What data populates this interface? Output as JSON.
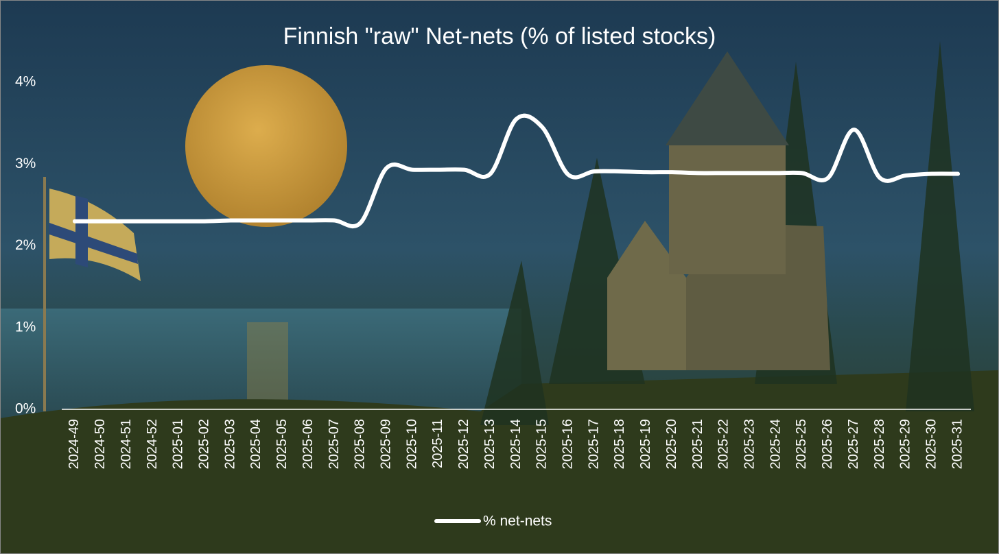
{
  "chart_data": {
    "type": "line",
    "title": "Finnish \"raw\" Net-nets (% of listed stocks)",
    "categories": [
      "2024-49",
      "2024-50",
      "2024-51",
      "2024-52",
      "2025-01",
      "2025-02",
      "2025-03",
      "2025-04",
      "2025-05",
      "2025-06",
      "2025-07",
      "2025-08",
      "2025-09",
      "2025-10",
      "2025-11",
      "2025-12",
      "2025-13",
      "2025-14",
      "2025-15",
      "2025-16",
      "2025-17",
      "2025-18",
      "2025-19",
      "2025-20",
      "2025-21",
      "2025-22",
      "2025-23",
      "2025-24",
      "2025-25",
      "2025-26",
      "2025-27",
      "2025-28",
      "2025-29",
      "2025-30",
      "2025-31"
    ],
    "series": [
      {
        "name": "% net-nets",
        "color": "#ffffff",
        "values": [
          2.3,
          2.3,
          2.3,
          2.3,
          2.3,
          2.3,
          2.31,
          2.31,
          2.31,
          2.31,
          2.31,
          2.28,
          2.95,
          2.93,
          2.93,
          2.93,
          2.88,
          3.55,
          3.45,
          2.87,
          2.91,
          2.91,
          2.9,
          2.9,
          2.89,
          2.89,
          2.89,
          2.89,
          2.89,
          2.83,
          3.42,
          2.83,
          2.86,
          2.88,
          2.88
        ]
      }
    ],
    "ylim": [
      0,
      4
    ],
    "yticks": [
      {
        "value": 0,
        "label": "0%"
      },
      {
        "value": 1,
        "label": "1%"
      },
      {
        "value": 2,
        "label": "2%"
      },
      {
        "value": 3,
        "label": "3%"
      },
      {
        "value": 4,
        "label": "4%"
      }
    ],
    "smooth": true,
    "legend": "bottom"
  }
}
